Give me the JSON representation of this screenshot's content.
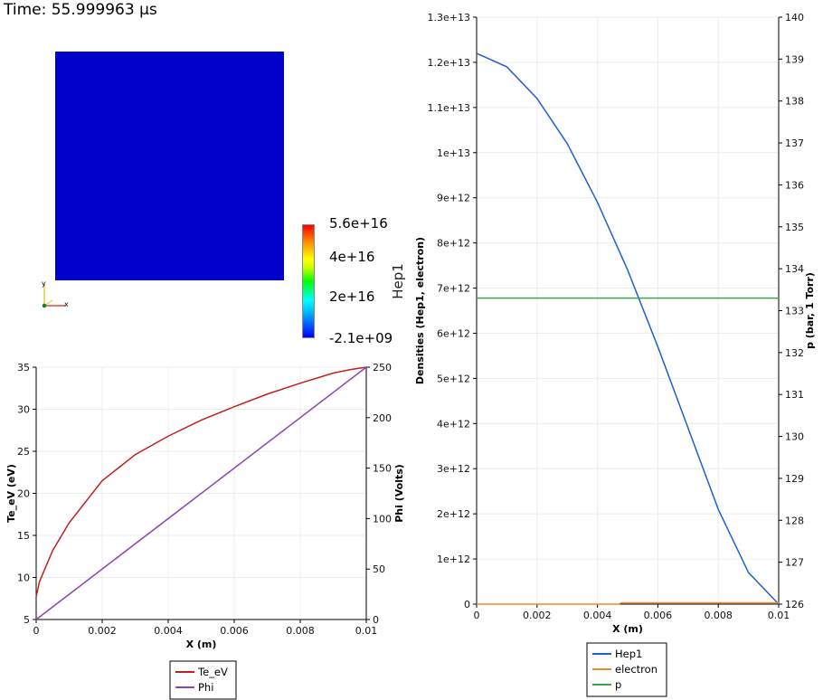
{
  "time_label": "Time: 55.999963 µs",
  "colorbar": {
    "title": "Hep1",
    "ticks": [
      "5.6e+16",
      "4e+16",
      "2e+16",
      "-2.1e+09"
    ],
    "colors": [
      "#0000ff",
      "#00ffff",
      "#00ff00",
      "#ffff00",
      "#ff0000"
    ]
  },
  "orientation_axes": {
    "x_label": "x",
    "y_label": "y"
  },
  "chart_data": [
    {
      "type": "line",
      "xlabel": "X (m)",
      "ylabel_left": "Te_eV (eV)",
      "ylabel_right": "Phi (Volts)",
      "xlim": [
        0,
        0.01
      ],
      "ylim_left": [
        5,
        35
      ],
      "ylim_right": [
        0,
        250
      ],
      "x_ticks": [
        "0",
        "0.002",
        "0.004",
        "0.006",
        "0.008",
        "0.01"
      ],
      "y_left_ticks": [
        "5",
        "10",
        "15",
        "20",
        "25",
        "30",
        "35"
      ],
      "y_right_ticks": [
        "0",
        "50",
        "100",
        "150",
        "200",
        "250"
      ],
      "grid": true,
      "legend_position": "bottom-center",
      "series": [
        {
          "name": "Te_eV",
          "axis": "left",
          "color": "#c0201e",
          "x": [
            0,
            0.0001,
            0.0005,
            0.001,
            0.002,
            0.003,
            0.004,
            0.005,
            0.006,
            0.007,
            0.008,
            0.009,
            0.0095,
            0.01
          ],
          "values": [
            7.7,
            9.5,
            13.2,
            16.5,
            21.5,
            24.6,
            26.8,
            28.7,
            30.3,
            31.8,
            33.1,
            34.3,
            34.7,
            35.0
          ]
        },
        {
          "name": "Phi",
          "axis": "right",
          "color": "#8e44ad",
          "x": [
            0,
            0.01
          ],
          "values": [
            0,
            250
          ]
        }
      ]
    },
    {
      "type": "line",
      "xlabel": "X (m)",
      "ylabel_left": "Densities (Hep1, electron)",
      "ylabel_right": "p (bar, 1 Torr)",
      "xlim": [
        0,
        0.01
      ],
      "ylim_left": [
        0,
        13000000000000
      ],
      "ylim_right": [
        126,
        140
      ],
      "x_ticks": [
        "0",
        "0.002",
        "0.004",
        "0.006",
        "0.008",
        "0.01"
      ],
      "y_left_ticks": [
        "0",
        "1e+12",
        "2e+12",
        "3e+12",
        "4e+12",
        "5e+12",
        "6e+12",
        "7e+12",
        "8e+12",
        "9e+12",
        "1e+13",
        "1.1e+13",
        "1.2e+13",
        "1.3e+13"
      ],
      "y_right_ticks": [
        "126",
        "127",
        "128",
        "129",
        "130",
        "131",
        "132",
        "133",
        "134",
        "135",
        "136",
        "137",
        "138",
        "139",
        "140"
      ],
      "grid": true,
      "legend_position": "bottom-center",
      "series": [
        {
          "name": "Hep1",
          "axis": "left",
          "color": "#1f5fcf",
          "x": [
            0,
            0.001,
            0.002,
            0.003,
            0.004,
            0.005,
            0.006,
            0.007,
            0.008,
            0.009,
            0.01
          ],
          "values": [
            12200000000000,
            11900000000000,
            11200000000000,
            10200000000000,
            8900000000000,
            7400000000000,
            5700000000000,
            3900000000000,
            2100000000000,
            700000000000,
            0
          ]
        },
        {
          "name": "electron",
          "axis": "left",
          "color": "#f08a24",
          "x": [
            0,
            0.0047,
            0.0048,
            0.01
          ],
          "values": [
            0,
            0,
            30000000000,
            30000000000
          ]
        },
        {
          "name": "p",
          "axis": "right",
          "color": "#3aa64a",
          "x": [
            0,
            0.01
          ],
          "values": [
            133.3,
            133.3
          ]
        }
      ]
    }
  ]
}
